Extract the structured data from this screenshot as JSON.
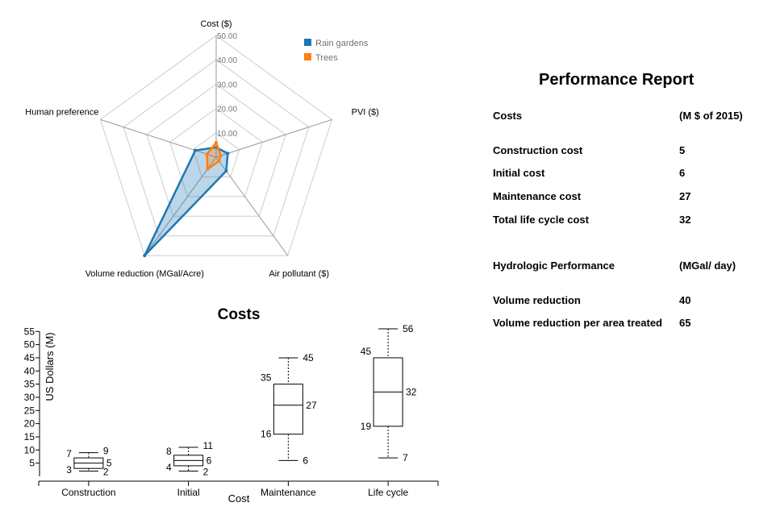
{
  "chart_data": [
    {
      "type": "radar",
      "axes": [
        "Cost ($)",
        "PVI ($)",
        "Air pollutant ($)",
        "Volume reduction (MGal/Acre)",
        "Human preference"
      ],
      "ticks": [
        "10.00",
        "20.00",
        "30.00",
        "40.00",
        "50.00"
      ],
      "range": [
        0,
        50
      ],
      "grid": true,
      "legend": "top-right",
      "series": [
        {
          "name": "Rain gardens",
          "color": "#1f77b4",
          "values": [
            4,
            5,
            7,
            50,
            9
          ]
        },
        {
          "name": "Trees",
          "color": "#ff7f0e",
          "values": [
            6,
            2,
            2,
            6,
            4
          ]
        }
      ]
    },
    {
      "type": "box",
      "title": "Costs",
      "xlabel": "Cost",
      "ylabel": "US Dollars (M)",
      "ylim": [
        0,
        56
      ],
      "yticks": [
        5,
        10,
        15,
        20,
        25,
        30,
        35,
        40,
        45,
        50,
        55
      ],
      "categories": [
        "Construction",
        "Initial",
        "Maintenance",
        "Life cycle"
      ],
      "boxes": [
        {
          "min": 2,
          "q1": 3,
          "median": 5,
          "q3": 7,
          "max": 9
        },
        {
          "min": 2,
          "q1": 4,
          "median": 6,
          "q3": 8,
          "max": 11
        },
        {
          "min": 6,
          "q1": 16,
          "median": 27,
          "q3": 35,
          "max": 45
        },
        {
          "min": 7,
          "q1": 19,
          "median": 32,
          "q3": 45,
          "max": 56
        }
      ]
    }
  ],
  "report": {
    "title": "Performance Report",
    "rows": [
      {
        "label": "Costs",
        "value": "(M $ of 2015)"
      },
      {
        "label": "Construction cost",
        "value": "5"
      },
      {
        "label": "Initial cost",
        "value": "6"
      },
      {
        "label": "Maintenance cost",
        "value": "27"
      },
      {
        "label": "Total life cycle cost",
        "value": "32"
      },
      {
        "label": "Hydrologic Performance",
        "value": "(MGal/ day)"
      },
      {
        "label": "Volume reduction",
        "value": "40"
      },
      {
        "label": "Volume reduction per area treated",
        "value": "65"
      }
    ]
  }
}
